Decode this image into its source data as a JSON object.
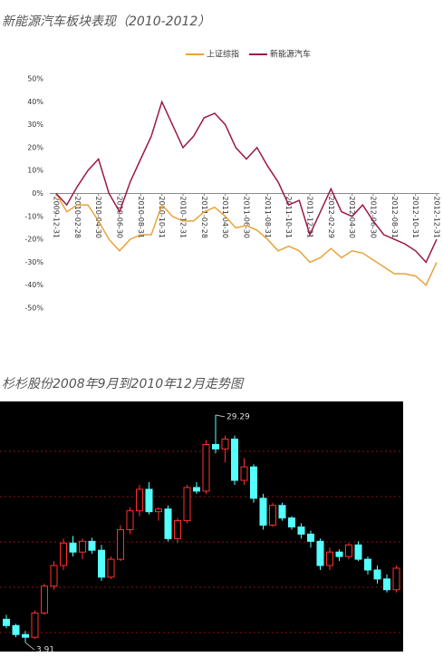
{
  "chart_data": [
    {
      "type": "line",
      "title": "新能源汽车板块表现（2010-2012）",
      "categories": [
        "2009-12-31",
        null,
        "2010-02-28",
        null,
        "2010-04-30",
        null,
        "2010-06-30",
        null,
        "2010-08-31",
        null,
        "2010-10-31",
        null,
        "2010-12-31",
        null,
        "2011-02-28",
        null,
        "2011-04-30",
        null,
        "2011-06-30",
        null,
        "2011-08-31",
        null,
        "2011-10-31",
        null,
        "2011-12-31",
        null,
        "2012-02-29",
        null,
        "2012-04-30",
        null,
        "2012-06-30",
        null,
        "2012-08-31",
        null,
        "2012-10-31",
        null,
        "2012-12-31"
      ],
      "series": [
        {
          "name": "上证综指",
          "color": "#e8a33a",
          "values": [
            0,
            -8,
            -5,
            -5,
            -12,
            -20,
            -25,
            -20,
            -18,
            -18,
            -5,
            -10,
            -12,
            -12,
            -8,
            -6,
            -10,
            -15,
            -14,
            -16,
            -20,
            -25,
            -23,
            -25,
            -30,
            -28,
            -24,
            -28,
            -25,
            -26,
            -29,
            -32,
            -35,
            -35,
            -36,
            -40,
            -30
          ]
        },
        {
          "name": "新能源汽车",
          "color": "#9b1a45",
          "values": [
            0,
            -5,
            3,
            10,
            15,
            0,
            -8,
            5,
            15,
            25,
            40,
            30,
            20,
            25,
            33,
            35,
            30,
            20,
            15,
            20,
            12,
            5,
            -5,
            -3,
            -18,
            -8,
            2,
            -8,
            -10,
            -5,
            -12,
            -18,
            -20,
            -22,
            -25,
            -30,
            -20
          ]
        }
      ],
      "ylim": [
        -50,
        50
      ],
      "yticks": [
        {
          "value": 50,
          "label": "50%"
        },
        {
          "value": 40,
          "label": "40%"
        },
        {
          "value": 30,
          "label": "30%"
        },
        {
          "value": 20,
          "label": "20%"
        },
        {
          "value": 10,
          "label": "10%"
        },
        {
          "value": 0,
          "label": "0%"
        },
        {
          "value": -10,
          "label": "-10%"
        },
        {
          "value": -20,
          "label": "-20%"
        },
        {
          "value": -30,
          "label": "-30%"
        },
        {
          "value": -40,
          "label": "-40%"
        },
        {
          "value": -50,
          "label": "-50%"
        }
      ]
    },
    {
      "type": "candlestick",
      "title": "杉杉股份2008年9月到2010年12月走势图",
      "up_color": "#ff3030",
      "down_color": "#54ffff",
      "background": "#000000",
      "grid": true,
      "open": [
        6.5,
        5.8,
        4.8,
        4.5,
        7.2,
        10.2,
        12.5,
        15.0,
        14.0,
        15.2,
        14.2,
        11.2,
        13.2,
        16.5,
        18.6,
        21.0,
        18.5,
        18.8,
        15.5,
        17.5,
        21.2,
        20.8,
        26.0,
        25.5,
        26.6,
        22.0,
        23.5,
        20.0,
        17.0,
        19.2,
        17.8,
        16.8,
        16.0,
        15.2,
        12.5,
        14.0,
        13.5,
        14.8,
        13.2,
        12.0,
        11.0,
        9.8
      ],
      "high": [
        7.0,
        6.0,
        5.2,
        7.5,
        10.5,
        13.0,
        15.5,
        15.8,
        15.5,
        15.6,
        14.8,
        13.5,
        17.0,
        19.0,
        21.5,
        21.8,
        19.0,
        19.2,
        17.8,
        21.5,
        21.8,
        26.5,
        29.29,
        27.0,
        27.0,
        24.5,
        23.8,
        20.5,
        19.5,
        19.5,
        18.0,
        17.2,
        16.4,
        15.5,
        14.5,
        14.3,
        15.0,
        15.2,
        13.5,
        12.5,
        11.5,
        12.5
      ],
      "low": [
        5.5,
        4.5,
        3.91,
        4.3,
        7.0,
        9.8,
        12.0,
        13.5,
        13.2,
        13.8,
        10.8,
        11.0,
        13.0,
        16.0,
        18.0,
        18.2,
        17.5,
        15.2,
        15.0,
        17.2,
        20.5,
        20.5,
        25.0,
        24.0,
        21.5,
        21.5,
        19.5,
        16.5,
        16.8,
        17.5,
        16.5,
        15.5,
        14.5,
        12.0,
        12.0,
        13.0,
        13.2,
        13.0,
        11.5,
        10.5,
        9.5,
        9.5
      ],
      "close": [
        5.8,
        4.8,
        4.5,
        7.2,
        10.2,
        12.5,
        15.0,
        14.0,
        15.2,
        14.2,
        11.2,
        13.2,
        16.5,
        18.6,
        21.0,
        18.5,
        18.8,
        15.5,
        17.5,
        21.2,
        20.8,
        26.0,
        25.5,
        26.6,
        22.0,
        23.5,
        20.0,
        17.0,
        19.2,
        17.8,
        16.8,
        16.0,
        15.2,
        12.5,
        14.0,
        13.5,
        14.8,
        13.2,
        12.0,
        11.0,
        9.8,
        12.2
      ],
      "ylim": [
        2.9,
        30.8
      ],
      "annotations": [
        29.29,
        3.91
      ]
    }
  ]
}
